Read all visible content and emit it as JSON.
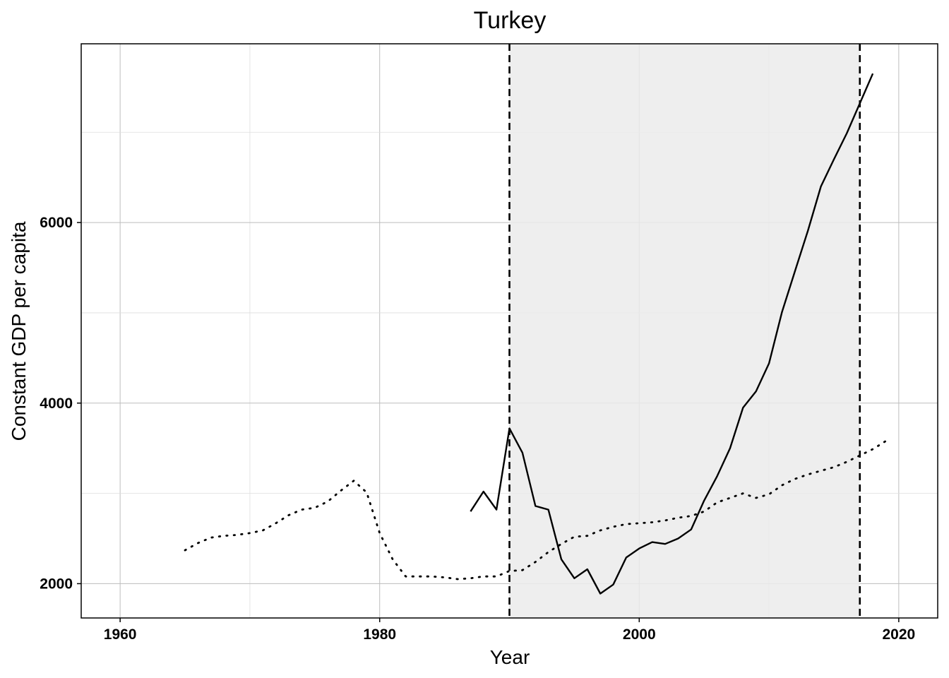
{
  "chart_data": {
    "type": "line",
    "title": "Turkey",
    "xlabel": "Year",
    "ylabel": "Constant GDP per capita",
    "xlim": [
      1957,
      2023
    ],
    "ylim": [
      1620,
      7980
    ],
    "x_ticks": [
      1960,
      1980,
      2000,
      2020
    ],
    "y_ticks": [
      2000,
      4000,
      6000
    ],
    "grid": true,
    "legend": "none",
    "shaded_region": {
      "x_start": 1990,
      "x_end": 2017,
      "color": "#ebebeb"
    },
    "vlines": [
      {
        "x": 1990,
        "style": "dashed"
      },
      {
        "x": 2017,
        "style": "dashed"
      }
    ],
    "series": [
      {
        "style": "solid",
        "x": [
          1987,
          1988,
          1989,
          1990,
          1991,
          1992,
          1993,
          1994,
          1995,
          1996,
          1997,
          1998,
          1999,
          2000,
          2001,
          2002,
          2003,
          2004,
          2005,
          2006,
          2007,
          2008,
          2009,
          2010,
          2011,
          2012,
          2013,
          2014,
          2015,
          2016,
          2017,
          2018
        ],
        "values": [
          2800,
          3020,
          2820,
          3720,
          3450,
          2860,
          2820,
          2270,
          2060,
          2160,
          1890,
          1990,
          2290,
          2390,
          2460,
          2440,
          2500,
          2600,
          2920,
          3190,
          3500,
          3950,
          4130,
          4440,
          5010,
          5460,
          5910,
          6400,
          6700,
          6990,
          7320,
          7650
        ]
      },
      {
        "style": "dotted",
        "x": [
          1965,
          1966,
          1967,
          1968,
          1969,
          1970,
          1971,
          1972,
          1973,
          1974,
          1975,
          1976,
          1977,
          1978,
          1979,
          1980,
          1981,
          1982,
          1983,
          1984,
          1985,
          1986,
          1987,
          1988,
          1989,
          1990,
          1991,
          1992,
          1993,
          1994,
          1995,
          1996,
          1997,
          1998,
          1999,
          2000,
          2001,
          2002,
          2003,
          2004,
          2005,
          2006,
          2007,
          2008,
          2009,
          2010,
          2011,
          2012,
          2013,
          2014,
          2015,
          2016,
          2017,
          2018,
          2019
        ],
        "values": [
          2370,
          2450,
          2510,
          2530,
          2540,
          2560,
          2590,
          2670,
          2760,
          2820,
          2840,
          2910,
          3030,
          3140,
          3010,
          2560,
          2270,
          2080,
          2080,
          2080,
          2070,
          2050,
          2060,
          2080,
          2080,
          2140,
          2150,
          2240,
          2350,
          2440,
          2520,
          2530,
          2590,
          2630,
          2660,
          2670,
          2680,
          2700,
          2730,
          2750,
          2800,
          2900,
          2950,
          3000,
          2950,
          2990,
          3090,
          3160,
          3210,
          3250,
          3290,
          3350,
          3420,
          3490,
          3580
        ]
      }
    ]
  }
}
